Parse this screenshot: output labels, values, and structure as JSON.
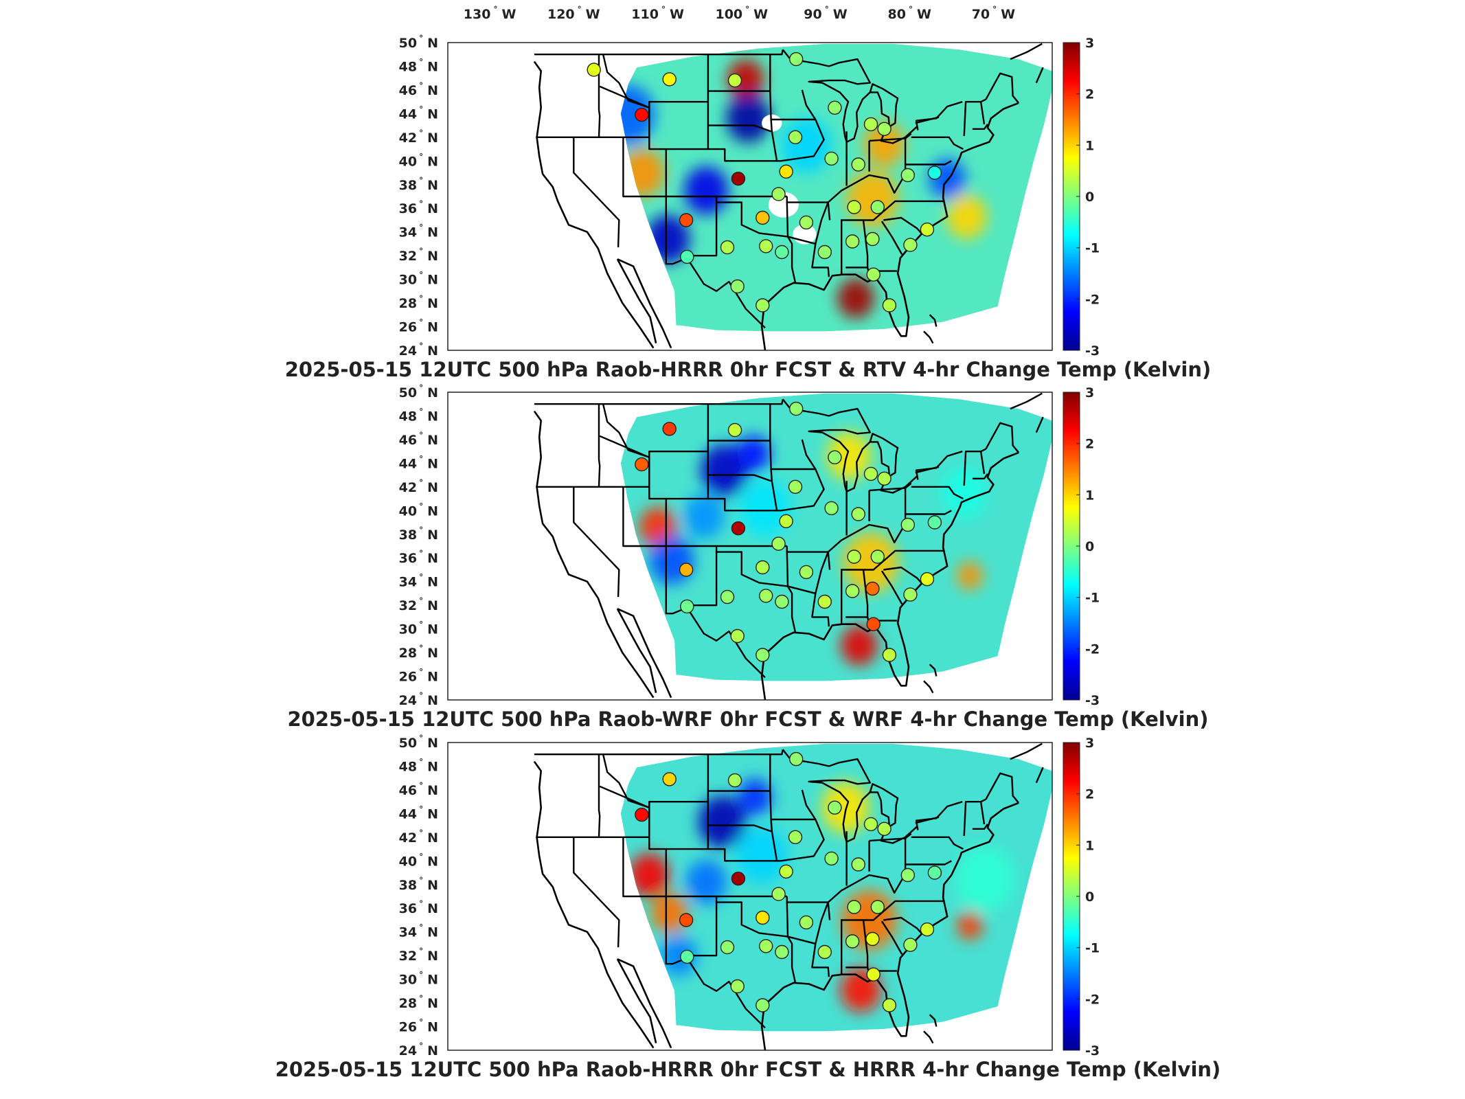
{
  "figure": {
    "longitude_labels": [
      "130",
      "120",
      "110",
      "100",
      "90",
      "80",
      "70"
    ],
    "longitude_suffix": "W",
    "latitude_labels": [
      "50",
      "48",
      "46",
      "44",
      "42",
      "40",
      "38",
      "36",
      "34",
      "32",
      "30",
      "28",
      "26",
      "24"
    ],
    "latitude_suffix": "N",
    "degree_symbol": "°",
    "colorbar": {
      "ticks": [
        "3",
        "2",
        "1",
        "0",
        "-1",
        "-2",
        "-3"
      ],
      "range": [
        -3,
        3
      ],
      "colormap": "jet",
      "colors": [
        "#00008f",
        "#0000ff",
        "#0080ff",
        "#00ffff",
        "#80ff80",
        "#ffff00",
        "#ff8000",
        "#ff0000",
        "#800000"
      ]
    },
    "colors": {
      "station_outline": "#222222",
      "map_lines": "#000000"
    }
  },
  "panels": [
    {
      "title": "2025-05-15 12UTC 500 hPa Raob-HRRR 0hr FCST & RTV 4-hr Change Temp (Kelvin)",
      "field_background": "#54e8c2",
      "stations": [
        {
          "lon": -108.6,
          "lat": 46.9,
          "value": 0.8
        },
        {
          "lon": -100.8,
          "lat": 46.8,
          "value": 0.4
        },
        {
          "lon": -93.5,
          "lat": 48.6,
          "value": 0.1
        },
        {
          "lon": -117.6,
          "lat": 47.7,
          "value": 0.6
        },
        {
          "lon": -111.9,
          "lat": 43.9,
          "value": 2.2
        },
        {
          "lon": -100.4,
          "lat": 38.5,
          "value": 2.8
        },
        {
          "lon": -93.6,
          "lat": 42.0,
          "value": 0.2
        },
        {
          "lon": -94.7,
          "lat": 39.1,
          "value": 0.9
        },
        {
          "lon": -88.9,
          "lat": 44.5,
          "value": 0.1
        },
        {
          "lon": -83.0,
          "lat": 42.7,
          "value": 0.2
        },
        {
          "lon": -80.2,
          "lat": 38.8,
          "value": 0.1
        },
        {
          "lon": -86.1,
          "lat": 39.7,
          "value": 0.2
        },
        {
          "lon": -89.3,
          "lat": 40.2,
          "value": 0.1
        },
        {
          "lon": -84.6,
          "lat": 43.1,
          "value": 0.3
        },
        {
          "lon": -77.0,
          "lat": 39.0,
          "value": -0.6
        },
        {
          "lon": -83.8,
          "lat": 36.1,
          "value": 0.1
        },
        {
          "lon": -86.6,
          "lat": 36.1,
          "value": 0.4
        },
        {
          "lon": -95.6,
          "lat": 37.2,
          "value": 0.2
        },
        {
          "lon": -97.5,
          "lat": 35.2,
          "value": 1.1
        },
        {
          "lon": -92.3,
          "lat": 34.8,
          "value": 0.2
        },
        {
          "lon": -106.6,
          "lat": 35.0,
          "value": 1.8
        },
        {
          "lon": -101.7,
          "lat": 32.7,
          "value": 0.3
        },
        {
          "lon": -97.1,
          "lat": 32.8,
          "value": 0.3
        },
        {
          "lon": -95.2,
          "lat": 32.3,
          "value": -0.2
        },
        {
          "lon": -90.1,
          "lat": 32.3,
          "value": 0.1
        },
        {
          "lon": -86.8,
          "lat": 33.2,
          "value": 0.2
        },
        {
          "lon": -84.4,
          "lat": 33.4,
          "value": 0.2
        },
        {
          "lon": -79.9,
          "lat": 32.9,
          "value": 0.2
        },
        {
          "lon": -77.9,
          "lat": 34.2,
          "value": 0.5
        },
        {
          "lon": -106.5,
          "lat": 31.9,
          "value": -0.3
        },
        {
          "lon": -100.5,
          "lat": 29.4,
          "value": 0.1
        },
        {
          "lon": -97.5,
          "lat": 27.8,
          "value": 0.2
        },
        {
          "lon": -84.3,
          "lat": 30.4,
          "value": 0.2
        },
        {
          "lon": -82.4,
          "lat": 27.8,
          "value": 0.3
        }
      ],
      "anomalies": [
        {
          "lon": -99.5,
          "lat": 46.9,
          "value": 2.6,
          "size": 2.0
        },
        {
          "lon": -99.2,
          "lat": 43.6,
          "value": -2.8,
          "size": 2.4
        },
        {
          "lon": -104.2,
          "lat": 37.5,
          "value": -2.4,
          "size": 2.4
        },
        {
          "lon": -108.8,
          "lat": 33.4,
          "value": -2.6,
          "size": 2.4
        },
        {
          "lon": -113.6,
          "lat": 43.9,
          "value": -1.7,
          "size": 3.0
        },
        {
          "lon": -111.8,
          "lat": 39.0,
          "value": 1.4,
          "size": 2.4
        },
        {
          "lon": -86.4,
          "lat": 28.4,
          "value": 2.8,
          "size": 2.0
        },
        {
          "lon": -84.4,
          "lat": 36.8,
          "value": 1.2,
          "size": 2.8
        },
        {
          "lon": -83.0,
          "lat": 41.4,
          "value": 1.3,
          "size": 2.2
        },
        {
          "lon": -75.5,
          "lat": 38.5,
          "value": -1.8,
          "size": 2.0
        },
        {
          "lon": -73.2,
          "lat": 35.3,
          "value": 1.0,
          "size": 2.2
        },
        {
          "lon": -92.3,
          "lat": 41.3,
          "value": -1.0,
          "size": 2.8
        }
      ],
      "no_data": [
        {
          "lon": -96.4,
          "lat": 43.2,
          "size": 1.2
        },
        {
          "lon": -95.0,
          "lat": 36.3,
          "size": 1.8
        },
        {
          "lon": -92.5,
          "lat": 33.8,
          "size": 1.4
        }
      ]
    },
    {
      "title": "2025-05-15 12UTC 500 hPa Raob-WRF 0hr FCST & WRF 4-hr Change Temp (Kelvin)",
      "field_background": "#49e2cf",
      "stations": [
        {
          "lon": -108.6,
          "lat": 46.9,
          "value": 1.9
        },
        {
          "lon": -100.8,
          "lat": 46.8,
          "value": 0.4
        },
        {
          "lon": -93.5,
          "lat": 48.6,
          "value": 0.1
        },
        {
          "lon": -111.9,
          "lat": 43.9,
          "value": 1.7
        },
        {
          "lon": -100.4,
          "lat": 38.5,
          "value": 2.7
        },
        {
          "lon": -93.6,
          "lat": 42.0,
          "value": 0.2
        },
        {
          "lon": -94.7,
          "lat": 39.1,
          "value": 0.4
        },
        {
          "lon": -88.9,
          "lat": 44.5,
          "value": 0.1
        },
        {
          "lon": -83.0,
          "lat": 42.7,
          "value": 0.3
        },
        {
          "lon": -80.2,
          "lat": 38.8,
          "value": 0.1
        },
        {
          "lon": -86.1,
          "lat": 39.7,
          "value": 0.2
        },
        {
          "lon": -89.3,
          "lat": 40.2,
          "value": 0.1
        },
        {
          "lon": -84.6,
          "lat": 43.1,
          "value": 0.3
        },
        {
          "lon": -77.0,
          "lat": 39.0,
          "value": -0.2
        },
        {
          "lon": -83.8,
          "lat": 36.1,
          "value": 0.2
        },
        {
          "lon": -86.6,
          "lat": 36.1,
          "value": 0.3
        },
        {
          "lon": -95.6,
          "lat": 37.2,
          "value": 0.2
        },
        {
          "lon": -97.5,
          "lat": 35.2,
          "value": 0.3
        },
        {
          "lon": -92.3,
          "lat": 34.8,
          "value": 0.2
        },
        {
          "lon": -106.6,
          "lat": 35.0,
          "value": 1.2
        },
        {
          "lon": -101.7,
          "lat": 32.7,
          "value": 0.1
        },
        {
          "lon": -97.1,
          "lat": 32.8,
          "value": 0.2
        },
        {
          "lon": -95.2,
          "lat": 32.3,
          "value": 0.1
        },
        {
          "lon": -90.1,
          "lat": 32.3,
          "value": 0.4
        },
        {
          "lon": -86.8,
          "lat": 33.2,
          "value": 0.2
        },
        {
          "lon": -84.4,
          "lat": 33.4,
          "value": 1.6
        },
        {
          "lon": -79.9,
          "lat": 32.9,
          "value": 0.2
        },
        {
          "lon": -77.9,
          "lat": 34.2,
          "value": 0.6
        },
        {
          "lon": -106.5,
          "lat": 31.9,
          "value": -0.1
        },
        {
          "lon": -100.5,
          "lat": 29.4,
          "value": 0.3
        },
        {
          "lon": -97.5,
          "lat": 27.8,
          "value": 0.1
        },
        {
          "lon": -84.3,
          "lat": 30.4,
          "value": 1.8
        },
        {
          "lon": -82.4,
          "lat": 27.8,
          "value": 0.4
        }
      ],
      "anomalies": [
        {
          "lon": -102.0,
          "lat": 43.4,
          "value": -2.6,
          "size": 2.6
        },
        {
          "lon": -98.6,
          "lat": 44.8,
          "value": -2.2,
          "size": 1.8
        },
        {
          "lon": -110.0,
          "lat": 38.6,
          "value": 2.0,
          "size": 2.0
        },
        {
          "lon": -108.3,
          "lat": 35.8,
          "value": -1.8,
          "size": 2.4
        },
        {
          "lon": -104.5,
          "lat": 39.5,
          "value": -1.4,
          "size": 2.2
        },
        {
          "lon": -86.0,
          "lat": 28.6,
          "value": 2.4,
          "size": 2.0
        },
        {
          "lon": -84.6,
          "lat": 35.6,
          "value": 1.1,
          "size": 3.0
        },
        {
          "lon": -87.2,
          "lat": 44.6,
          "value": 0.9,
          "size": 2.4
        },
        {
          "lon": -97.2,
          "lat": 40.2,
          "value": -0.9,
          "size": 2.8
        },
        {
          "lon": -72.8,
          "lat": 34.5,
          "value": 1.4,
          "size": 1.4
        },
        {
          "lon": -73.5,
          "lat": 41.5,
          "value": -0.6,
          "size": 2.4
        }
      ],
      "no_data": []
    },
    {
      "title": "2025-05-15 12UTC 500 hPa Raob-HRRR 0hr FCST & HRRR 4-hr Change Temp (Kelvin)",
      "field_background": "#47e0d2",
      "stations": [
        {
          "lon": -108.6,
          "lat": 46.9,
          "value": 1.0
        },
        {
          "lon": -100.8,
          "lat": 46.8,
          "value": 0.2
        },
        {
          "lon": -93.5,
          "lat": 48.6,
          "value": 0.1
        },
        {
          "lon": -111.9,
          "lat": 43.9,
          "value": 2.2
        },
        {
          "lon": -100.4,
          "lat": 38.5,
          "value": 2.8
        },
        {
          "lon": -93.6,
          "lat": 42.0,
          "value": 0.2
        },
        {
          "lon": -94.7,
          "lat": 39.1,
          "value": 0.4
        },
        {
          "lon": -88.9,
          "lat": 44.5,
          "value": 0.1
        },
        {
          "lon": -83.0,
          "lat": 42.7,
          "value": 0.3
        },
        {
          "lon": -80.2,
          "lat": 38.8,
          "value": 0.1
        },
        {
          "lon": -86.1,
          "lat": 39.7,
          "value": 0.2
        },
        {
          "lon": -89.3,
          "lat": 40.2,
          "value": 0.1
        },
        {
          "lon": -84.6,
          "lat": 43.1,
          "value": 0.3
        },
        {
          "lon": -77.0,
          "lat": 39.0,
          "value": -0.2
        },
        {
          "lon": -83.8,
          "lat": 36.1,
          "value": 0.2
        },
        {
          "lon": -86.6,
          "lat": 36.1,
          "value": 0.2
        },
        {
          "lon": -95.6,
          "lat": 37.2,
          "value": 0.2
        },
        {
          "lon": -97.5,
          "lat": 35.2,
          "value": 0.9
        },
        {
          "lon": -92.3,
          "lat": 34.8,
          "value": 0.2
        },
        {
          "lon": -106.6,
          "lat": 35.0,
          "value": 1.8
        },
        {
          "lon": -101.7,
          "lat": 32.7,
          "value": 0.1
        },
        {
          "lon": -97.1,
          "lat": 32.8,
          "value": 0.2
        },
        {
          "lon": -95.2,
          "lat": 32.3,
          "value": 0.1
        },
        {
          "lon": -90.1,
          "lat": 32.3,
          "value": 0.3
        },
        {
          "lon": -86.8,
          "lat": 33.2,
          "value": 0.2
        },
        {
          "lon": -84.4,
          "lat": 33.4,
          "value": 0.6
        },
        {
          "lon": -79.9,
          "lat": 32.9,
          "value": 0.2
        },
        {
          "lon": -77.9,
          "lat": 34.2,
          "value": 0.5
        },
        {
          "lon": -106.5,
          "lat": 31.9,
          "value": -0.2
        },
        {
          "lon": -100.5,
          "lat": 29.4,
          "value": 0.2
        },
        {
          "lon": -97.5,
          "lat": 27.8,
          "value": 0.1
        },
        {
          "lon": -84.3,
          "lat": 30.4,
          "value": 0.6
        },
        {
          "lon": -82.4,
          "lat": 27.8,
          "value": 0.4
        }
      ],
      "anomalies": [
        {
          "lon": -102.3,
          "lat": 43.3,
          "value": -2.7,
          "size": 2.6
        },
        {
          "lon": -98.4,
          "lat": 45.4,
          "value": -2.0,
          "size": 1.8
        },
        {
          "lon": -111.0,
          "lat": 38.8,
          "value": 2.3,
          "size": 2.2
        },
        {
          "lon": -108.6,
          "lat": 35.6,
          "value": 1.6,
          "size": 2.0
        },
        {
          "lon": -104.2,
          "lat": 38.2,
          "value": -1.6,
          "size": 2.2
        },
        {
          "lon": -107.5,
          "lat": 32.0,
          "value": -1.5,
          "size": 2.0
        },
        {
          "lon": -85.8,
          "lat": 29.1,
          "value": 2.2,
          "size": 2.2
        },
        {
          "lon": -84.8,
          "lat": 35.0,
          "value": 1.6,
          "size": 3.0
        },
        {
          "lon": -87.6,
          "lat": 44.5,
          "value": 0.9,
          "size": 2.6
        },
        {
          "lon": -97.6,
          "lat": 40.5,
          "value": -1.0,
          "size": 2.8
        },
        {
          "lon": -72.8,
          "lat": 34.5,
          "value": 1.9,
          "size": 1.4
        },
        {
          "lon": -71.0,
          "lat": 38.5,
          "value": -0.5,
          "size": 3.2
        }
      ],
      "no_data": []
    }
  ]
}
